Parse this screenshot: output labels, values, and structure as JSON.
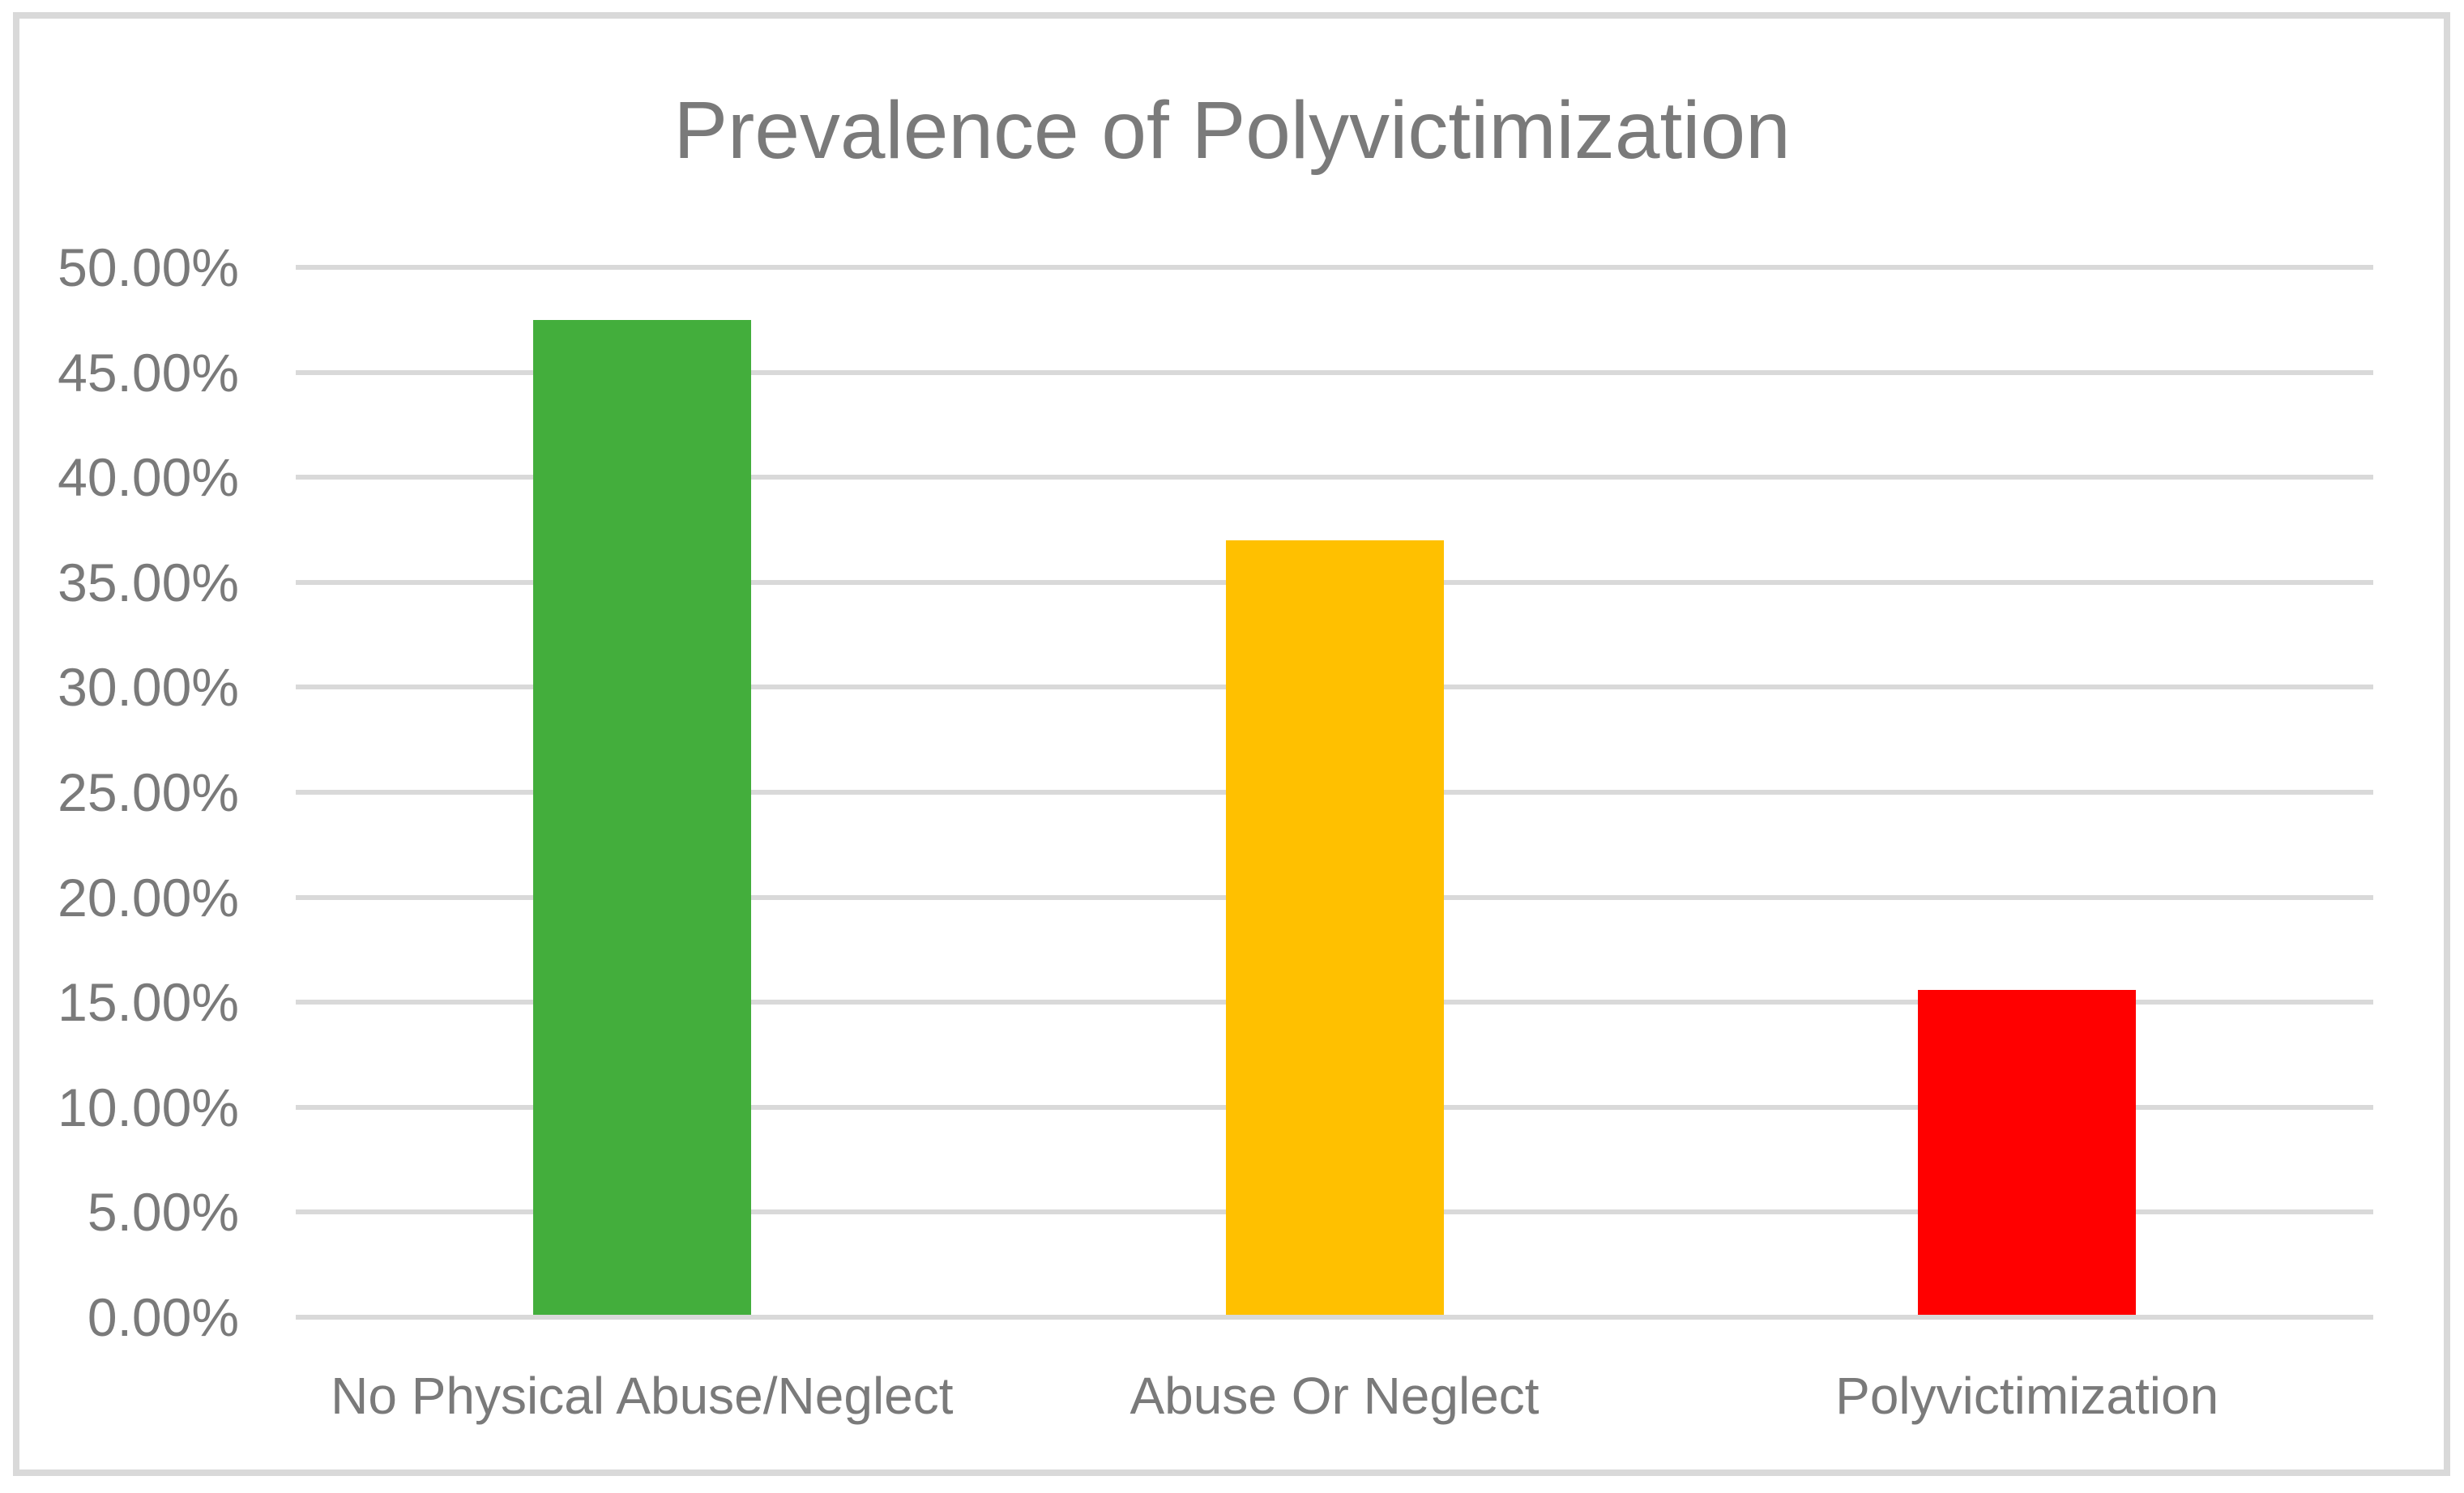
{
  "chart_data": {
    "type": "bar",
    "title": "Prevalence of Polyvictimization",
    "categories": [
      "No Physical Abuse/Neglect",
      "Abuse Or Neglect",
      "Polyvictimization"
    ],
    "values": [
      47.5,
      37.0,
      15.6
    ],
    "bar_colors": [
      "#43AE3C",
      "#FFC000",
      "#FF0000"
    ],
    "y_tick_labels": [
      "0.00%",
      "5.00%",
      "10.00%",
      "15.00%",
      "20.00%",
      "25.00%",
      "30.00%",
      "35.00%",
      "40.00%",
      "45.00%",
      "50.00%"
    ],
    "ylim": [
      0,
      50
    ],
    "y_tick_step": 5,
    "xlabel": "",
    "ylabel": "",
    "legend": "none",
    "grid": "horizontal",
    "grid_color": "#D9D9D9",
    "axis_text_color": "#7A7A7A",
    "frame_border_color": "#D9D9D9",
    "background_color": "#FFFFFF"
  }
}
